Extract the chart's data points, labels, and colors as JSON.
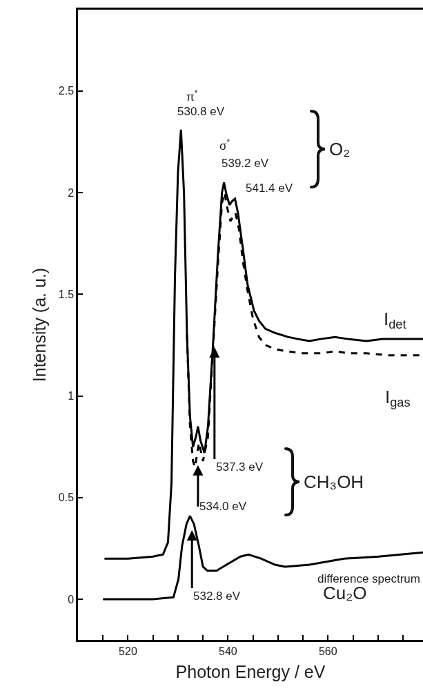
{
  "chart_data": {
    "type": "line",
    "xlabel": "Photon Energy / eV",
    "ylabel": "Intensity (a. u.)",
    "xlim": [
      510,
      579
    ],
    "ylim": [
      -0.2,
      2.9
    ],
    "xticks": [
      {
        "value": 515,
        "label": null
      },
      520,
      {
        "value": 525,
        "label": null
      },
      {
        "value": 530,
        "label": null
      },
      {
        "value": 535,
        "label": null
      },
      540,
      {
        "value": 545,
        "label": null
      },
      {
        "value": 550,
        "label": null
      },
      {
        "value": 555,
        "label": null
      },
      560,
      {
        "value": 565,
        "label": null
      },
      {
        "value": 570,
        "label": null
      },
      {
        "value": 575,
        "label": null
      }
    ],
    "yticks": [
      0,
      0.5,
      1,
      1.5,
      2,
      2.5
    ],
    "grid": false,
    "legend": false,
    "marker": "none",
    "series": [
      {
        "name": "I$_{det}$",
        "color": "#000000",
        "line_style": "solid",
        "x": [
          515.3,
          520,
          525,
          527,
          528,
          528.7,
          529.4,
          530.0,
          530.6,
          531.2,
          531.8,
          532.4,
          533.0,
          533.6,
          534.0,
          534.5,
          535.3,
          536.0,
          537.0,
          538.0,
          538.8,
          539.2,
          539.7,
          540.3,
          540.9,
          541.4,
          542.0,
          543.0,
          543.9,
          545.2,
          546.2,
          547.5,
          549.4,
          552,
          554,
          556.3,
          558.5,
          561.4,
          564,
          567.7,
          571,
          575,
          579
        ],
        "values": [
          0.2,
          0.2,
          0.21,
          0.22,
          0.28,
          0.57,
          1.59,
          2.1,
          2.31,
          2.0,
          1.3,
          0.9,
          0.75,
          0.8,
          0.85,
          0.78,
          0.72,
          0.85,
          1.25,
          1.7,
          2.0,
          2.05,
          1.99,
          1.94,
          1.96,
          1.97,
          1.9,
          1.72,
          1.55,
          1.42,
          1.37,
          1.33,
          1.31,
          1.29,
          1.28,
          1.27,
          1.28,
          1.29,
          1.28,
          1.27,
          1.28,
          1.28,
          1.28
        ]
      },
      {
        "name": "I$_{gas}$",
        "color": "#000000",
        "line_style": "dashed",
        "x": [
          531.8,
          532.4,
          533.0,
          533.4,
          534.2,
          535.0,
          536.0,
          536.6,
          538.0,
          538.8,
          539.3,
          539.9,
          540.5,
          541.0,
          541.5,
          542.2,
          543.0,
          543.9,
          545.0,
          546.2,
          547.5,
          549.5,
          551.7,
          555,
          558.6,
          561.5,
          564,
          567.7,
          572,
          575,
          579
        ],
        "values": [
          1.3,
          0.85,
          0.68,
          0.65,
          0.77,
          0.68,
          0.8,
          1.06,
          1.65,
          1.95,
          2.0,
          1.92,
          1.86,
          1.88,
          1.9,
          1.82,
          1.66,
          1.52,
          1.38,
          1.29,
          1.25,
          1.23,
          1.22,
          1.21,
          1.21,
          1.22,
          1.21,
          1.21,
          1.2,
          1.2,
          1.2
        ]
      },
      {
        "name": "difference spectrum",
        "color": "#000000",
        "line_style": "solid",
        "x": [
          515.0,
          520,
          525,
          529.1,
          530.1,
          530.8,
          531.7,
          532.4,
          533.2,
          534.2,
          535.0,
          535.9,
          537.7,
          539.7,
          542.5,
          544.1,
          546.6,
          549.4,
          551.4,
          556.3,
          563.2,
          570.1,
          579
        ],
        "values": [
          0.0,
          0.0,
          0.0,
          0.01,
          0.1,
          0.26,
          0.37,
          0.41,
          0.37,
          0.26,
          0.16,
          0.14,
          0.14,
          0.17,
          0.21,
          0.22,
          0.2,
          0.17,
          0.16,
          0.17,
          0.2,
          0.21,
          0.23
        ]
      }
    ],
    "annotations": [
      "π$^{*}$",
      {
        "text": "530.8 eV",
        "x": 530.8,
        "y": 2.31
      },
      "σ$^{*}$",
      {
        "text": "539.2 eV",
        "x": 539.2,
        "y": 2.05
      },
      {
        "text": "541.4 eV",
        "x": 541.4,
        "y": 1.97
      },
      "O₂",
      {
        "text": "537.3 eV",
        "x": 537.3,
        "y": 1.24
      },
      {
        "text": "534.0 eV",
        "x": 534.0,
        "y": 0.66
      },
      "CH₃OH",
      {
        "text": "532.8 eV",
        "x": 532.8,
        "y": 0.34
      },
      "Cu₂O"
    ]
  }
}
